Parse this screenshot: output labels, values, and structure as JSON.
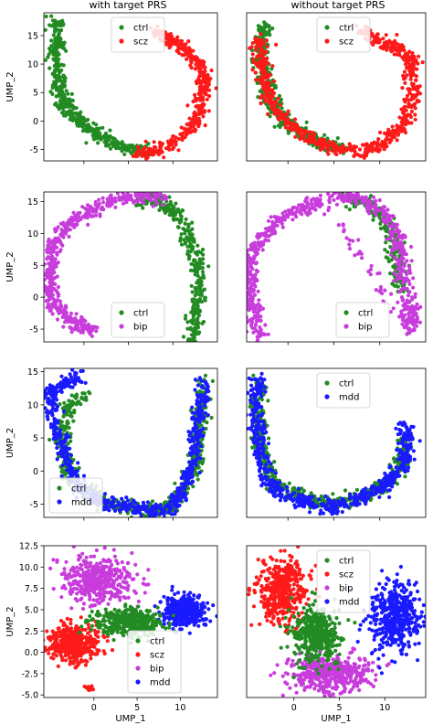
{
  "column_titles": [
    "with target PRS",
    "without target PRS"
  ],
  "colors": {
    "ctrl": "#228b22",
    "scz": "#ff1a1a",
    "bip": "#c83cdc",
    "mdd": "#1a1aff"
  },
  "chart_data": [
    {
      "type": "scatter",
      "row": 1,
      "column": "with target PRS",
      "xlabel": "",
      "ylabel": "UMP_2",
      "xlim": [
        -4.5,
        15
      ],
      "ylim": [
        -7,
        19
      ],
      "xticks": [],
      "yticks": [
        -5,
        0,
        5,
        10,
        15
      ],
      "legend": "top-center",
      "series": [
        {
          "name": "ctrl",
          "color": "#228b22",
          "path": [
            [
              -3,
              18
            ],
            [
              -2.8,
              14
            ],
            [
              -3.3,
              11
            ],
            [
              -2.8,
              7
            ],
            [
              -2.4,
              4
            ],
            [
              -1.8,
              2
            ],
            [
              -0.5,
              0
            ],
            [
              1,
              -2
            ],
            [
              3,
              -3.8
            ],
            [
              5,
              -4.8
            ],
            [
              7,
              -5.3
            ]
          ]
        },
        {
          "name": "scz",
          "color": "#ff1a1a",
          "path": [
            [
              6,
              -5.5
            ],
            [
              8,
              -5.5
            ],
            [
              10,
              -3.5
            ],
            [
              12.5,
              -0.5
            ],
            [
              13.3,
              4
            ],
            [
              13.5,
              7
            ],
            [
              13.2,
              10
            ],
            [
              11.5,
              12.5
            ],
            [
              9.5,
              14.5
            ],
            [
              8,
              15.8
            ]
          ]
        }
      ]
    },
    {
      "type": "scatter",
      "row": 1,
      "column": "without target PRS",
      "xlabel": "",
      "ylabel": "",
      "xlim": [
        -4.5,
        15
      ],
      "ylim": [
        -7,
        19
      ],
      "xticks": [],
      "yticks": [],
      "legend": "top-center",
      "series": [
        {
          "name": "ctrl",
          "color": "#228b22",
          "path": [
            [
              -2.5,
              17
            ],
            [
              -2.8,
              14
            ],
            [
              -3,
              11
            ],
            [
              -2.6,
              8
            ],
            [
              -2.1,
              5
            ],
            [
              -1.5,
              2
            ],
            [
              0,
              -0.5
            ],
            [
              2,
              -2.5
            ],
            [
              4,
              -4
            ],
            [
              6,
              -5
            ]
          ]
        },
        {
          "name": "scz",
          "color": "#ff1a1a",
          "path": [
            [
              -3,
              15
            ],
            [
              -3,
              11
            ],
            [
              -2.5,
              7
            ],
            [
              -1.8,
              3
            ],
            [
              0,
              -0.5
            ],
            [
              2.5,
              -3
            ],
            [
              5,
              -4.7
            ],
            [
              8,
              -5.5
            ],
            [
              10.5,
              -3.5
            ],
            [
              12.5,
              -0.5
            ],
            [
              13.5,
              4
            ],
            [
              13.5,
              8
            ],
            [
              13.5,
              11
            ],
            [
              11.5,
              13
            ],
            [
              9.5,
              14.5
            ],
            [
              8,
              15.8
            ]
          ]
        }
      ]
    },
    {
      "type": "scatter",
      "row": 2,
      "column": "with target PRS",
      "xlabel": "",
      "ylabel": "UMP_2",
      "xlim": [
        -4.5,
        15
      ],
      "ylim": [
        -7,
        16.5
      ],
      "xticks": [],
      "yticks": [
        -5,
        0,
        5,
        10,
        15
      ],
      "legend": "bottom-center",
      "series": [
        {
          "name": "ctrl",
          "color": "#228b22",
          "path": [
            [
              6,
              15.8
            ],
            [
              8.5,
              15
            ],
            [
              10.5,
              13
            ],
            [
              12,
              9
            ],
            [
              12.8,
              5
            ],
            [
              13,
              1
            ],
            [
              12.5,
              -3
            ],
            [
              12,
              -7
            ]
          ]
        },
        {
          "name": "bip",
          "color": "#c83cdc",
          "path": [
            [
              9,
              15.5
            ],
            [
              6,
              15.8
            ],
            [
              3,
              15
            ],
            [
              0,
              13
            ],
            [
              -2,
              11
            ],
            [
              -3.5,
              8
            ],
            [
              -4,
              5
            ],
            [
              -3.8,
              2
            ],
            [
              -3.5,
              -1
            ],
            [
              -2,
              -3
            ],
            [
              -0.5,
              -4.3
            ],
            [
              1,
              -5
            ]
          ]
        }
      ]
    },
    {
      "type": "scatter",
      "row": 2,
      "column": "without target PRS",
      "xlabel": "",
      "ylabel": "",
      "xlim": [
        -4.5,
        15
      ],
      "ylim": [
        -7,
        16.5
      ],
      "xticks": [],
      "yticks": [],
      "legend": "bottom-right",
      "series": [
        {
          "name": "ctrl",
          "color": "#228b22",
          "path": [
            [
              6,
              15.7
            ],
            [
              8.5,
              14.8
            ],
            [
              10.5,
              12.5
            ],
            [
              11.5,
              9
            ],
            [
              11.8,
              5
            ],
            [
              12.2,
              1
            ]
          ]
        },
        {
          "name": "bip",
          "color": "#c83cdc",
          "path": [
            [
              5,
              15.8
            ],
            [
              8,
              15.5
            ],
            [
              10.5,
              13
            ],
            [
              12,
              9
            ],
            [
              12.5,
              5
            ],
            [
              13,
              0
            ],
            [
              13.5,
              -3
            ],
            [
              13.2,
              -5
            ],
            [
              4,
              15.5
            ],
            [
              1.5,
              14
            ],
            [
              -1,
              12
            ],
            [
              -3,
              9
            ],
            [
              -4,
              6
            ],
            [
              -4.2,
              3
            ],
            [
              -4,
              0
            ],
            [
              -3.5,
              -3
            ],
            [
              -3,
              -6
            ]
          ]
        }
      ]
    },
    {
      "type": "scatter",
      "row": 3,
      "column": "with target PRS",
      "xlabel": "",
      "ylabel": "UMP_2",
      "xlim": [
        -4.5,
        15
      ],
      "ylim": [
        -7,
        15.5
      ],
      "xticks": [],
      "yticks": [
        -5,
        0,
        5,
        10,
        15
      ],
      "legend": "bottom-left",
      "series": [
        {
          "name": "ctrl",
          "color": "#228b22",
          "path": [
            [
              0,
              12
            ],
            [
              -2,
              9
            ],
            [
              -2.5,
              5
            ],
            [
              -2,
              1
            ],
            [
              -1,
              -2
            ],
            [
              1,
              -4
            ],
            [
              3,
              -5
            ],
            [
              5.5,
              -5.5
            ],
            [
              8,
              -6
            ],
            [
              9.5,
              -5.5
            ],
            [
              11,
              -3
            ],
            [
              12.5,
              1
            ],
            [
              13,
              5
            ],
            [
              13.2,
              9
            ],
            [
              13.5,
              13.5
            ]
          ]
        },
        {
          "name": "mdd",
          "color": "#1a1aff",
          "path": [
            [
              -0.5,
              14.2
            ],
            [
              -2.5,
              13
            ],
            [
              -3.8,
              11.5
            ],
            [
              -3.5,
              8
            ],
            [
              -2.5,
              4
            ],
            [
              -1.5,
              0
            ],
            [
              0,
              -3
            ],
            [
              2,
              -4.8
            ],
            [
              4.5,
              -5.3
            ],
            [
              7,
              -5.8
            ],
            [
              9.5,
              -5.8
            ],
            [
              11,
              -3.5
            ],
            [
              12,
              0
            ],
            [
              12.6,
              5
            ],
            [
              13,
              9
            ],
            [
              13.5,
              13.5
            ]
          ]
        }
      ]
    },
    {
      "type": "scatter",
      "row": 3,
      "column": "without target PRS",
      "xlabel": "",
      "ylabel": "",
      "xlim": [
        -4.5,
        15
      ],
      "ylim": [
        -7,
        15.5
      ],
      "xticks": [],
      "yticks": [],
      "legend": "top-center",
      "series": [
        {
          "name": "ctrl",
          "color": "#228b22",
          "path": [
            [
              -3,
              14
            ],
            [
              -3.2,
              10
            ],
            [
              -3,
              6
            ],
            [
              -2.7,
              2
            ],
            [
              -1.5,
              -2
            ],
            [
              1,
              -3.5
            ],
            [
              4,
              -5
            ],
            [
              7,
              -4.5
            ],
            [
              9.5,
              -3
            ],
            [
              11.5,
              -1
            ],
            [
              12.5,
              2
            ],
            [
              12.8,
              5
            ]
          ]
        },
        {
          "name": "mdd",
          "color": "#1a1aff",
          "path": [
            [
              -3,
              14.5
            ],
            [
              -3.5,
              11
            ],
            [
              -3.3,
              7
            ],
            [
              -3,
              3
            ],
            [
              -2.5,
              -1
            ],
            [
              -1,
              -3
            ],
            [
              1.5,
              -4.5
            ],
            [
              4,
              -5.3
            ],
            [
              6.5,
              -5
            ],
            [
              9,
              -3.5
            ],
            [
              11,
              -1.5
            ],
            [
              12.5,
              1
            ],
            [
              13,
              4
            ],
            [
              12.8,
              7
            ]
          ]
        }
      ]
    },
    {
      "type": "scatter",
      "row": 4,
      "column": "with target PRS",
      "xlabel": "UMP_1",
      "ylabel": "UMP_2",
      "xlim": [
        -5.8,
        14.3
      ],
      "ylim": [
        -5.3,
        12.5
      ],
      "xticks": [
        0,
        5,
        10
      ],
      "yticks": [
        -5.0,
        -2.5,
        0.0,
        2.5,
        5.0,
        7.5,
        10.0,
        12.5
      ],
      "legend": "bottom-right",
      "clusters": [
        {
          "name": "bip",
          "color": "#c83cdc",
          "center": [
            0.5,
            8.5
          ],
          "spread": [
            3.5,
            2.5
          ]
        },
        {
          "name": "scz",
          "color": "#ff1a1a",
          "center": [
            -2.5,
            1
          ],
          "spread": [
            3,
            2
          ]
        },
        {
          "name": "mdd",
          "color": "#1a1aff",
          "center": [
            10.5,
            4.8
          ],
          "spread": [
            2.2,
            1.6
          ]
        },
        {
          "name": "ctrl",
          "color": "#228b22",
          "center": [
            4,
            3.5
          ],
          "spread": [
            3.5,
            1.5
          ]
        },
        {
          "name": "scz",
          "color": "#ff1a1a",
          "center": [
            -0.5,
            -4.2
          ],
          "spread": [
            0.4,
            0.3
          ]
        }
      ]
    },
    {
      "type": "scatter",
      "row": 4,
      "column": "without target PRS",
      "xlabel": "UMP_1",
      "ylabel": "",
      "xlim": [
        -5.2,
        14.5
      ],
      "ylim": [
        -5.3,
        12.5
      ],
      "xticks": [
        0,
        5,
        10
      ],
      "yticks": [],
      "legend": "top-center",
      "clusters": [
        {
          "name": "scz",
          "color": "#ff1a1a",
          "center": [
            -1.5,
            7
          ],
          "spread": [
            2.5,
            3.5
          ]
        },
        {
          "name": "bip",
          "color": "#c83cdc",
          "center": [
            4,
            -2.5
          ],
          "spread": [
            4,
            2
          ]
        },
        {
          "name": "mdd",
          "color": "#1a1aff",
          "center": [
            11,
            4
          ],
          "spread": [
            2.5,
            4
          ]
        },
        {
          "name": "ctrl",
          "color": "#228b22",
          "center": [
            2.5,
            2
          ],
          "spread": [
            2.5,
            3
          ]
        }
      ]
    }
  ]
}
